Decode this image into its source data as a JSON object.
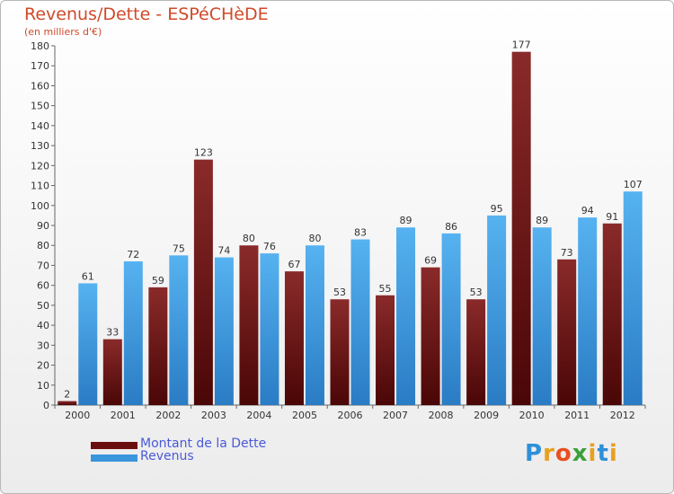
{
  "header": {
    "title": "Revenus/Dette - ESPéCHèDE",
    "subtitle": "(en milliers d'€)"
  },
  "legend": [
    {
      "label": "Montant de la Dette",
      "color": "#6a0f0f"
    },
    {
      "label": "Revenus",
      "color": "#3a96dc"
    }
  ],
  "logo": {
    "text": "Proxiti",
    "letters": [
      "P",
      "r",
      "o",
      "x",
      "i",
      "t",
      "i"
    ],
    "colors": [
      "#2f8fd8",
      "#e8a020",
      "#e85020",
      "#3aa03a",
      "#e8a020",
      "#2f8fd8",
      "#e8a020"
    ]
  },
  "chart_data": {
    "type": "bar",
    "title": "Revenus/Dette - ESPéCHèDE",
    "categories": [
      "2000",
      "2001",
      "2002",
      "2003",
      "2004",
      "2005",
      "2006",
      "2007",
      "2008",
      "2009",
      "2010",
      "2011",
      "2012"
    ],
    "series": [
      {
        "name": "Montant de la Dette",
        "color": "#6a0f0f",
        "values": [
          2,
          33,
          59,
          123,
          80,
          67,
          53,
          55,
          69,
          53,
          177,
          73,
          91
        ]
      },
      {
        "name": "Revenus",
        "color": "#3a96dc",
        "values": [
          61,
          72,
          75,
          74,
          76,
          80,
          83,
          89,
          86,
          95,
          89,
          94,
          107
        ]
      }
    ],
    "ylim": [
      0,
      180
    ],
    "yticks": [
      0,
      10,
      20,
      30,
      40,
      50,
      60,
      70,
      80,
      90,
      100,
      110,
      120,
      130,
      140,
      150,
      160,
      170,
      180
    ],
    "grid": false
  }
}
